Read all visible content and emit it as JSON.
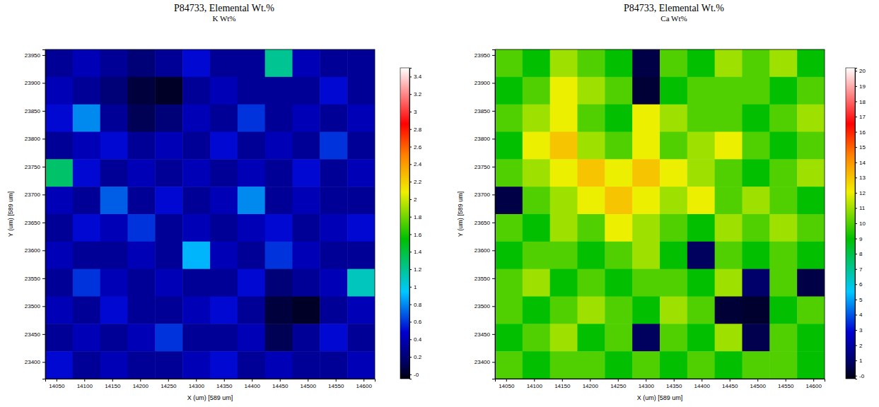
{
  "chart_data": [
    {
      "type": "heatmap",
      "title": "P84733, Elemental Wt.%",
      "subtitle": "K Wt%",
      "x_label": "X (um)  [589 um]",
      "y_label": "Y (um)  [589 um]",
      "xlim": [
        14030,
        14620
      ],
      "ylim": [
        23370,
        23960
      ],
      "xticks": [
        14050,
        14100,
        14150,
        14200,
        14250,
        14300,
        14350,
        14400,
        14450,
        14500,
        14550,
        14600
      ],
      "yticks": [
        23400,
        23450,
        23500,
        23550,
        23600,
        23650,
        23700,
        23750,
        23800,
        23850,
        23900,
        23950
      ],
      "cells": [
        [
          0.3,
          0.4,
          0.3,
          0.2,
          0.3,
          0.5,
          0.3,
          0.3,
          1.2,
          0.4,
          0.3,
          0.3
        ],
        [
          0.4,
          0.3,
          0.2,
          0.05,
          0.0,
          0.3,
          0.4,
          0.3,
          0.3,
          0.3,
          0.5,
          0.3
        ],
        [
          0.5,
          0.8,
          0.3,
          0.1,
          0.2,
          0.4,
          0.3,
          0.6,
          0.3,
          0.4,
          0.3,
          0.4
        ],
        [
          0.3,
          0.4,
          0.5,
          0.3,
          0.4,
          0.3,
          0.5,
          0.3,
          0.4,
          0.3,
          0.6,
          0.3
        ],
        [
          1.3,
          0.5,
          0.3,
          0.4,
          0.3,
          0.4,
          0.3,
          0.4,
          0.3,
          0.5,
          0.3,
          0.4
        ],
        [
          0.4,
          0.3,
          0.7,
          0.3,
          0.5,
          0.3,
          0.4,
          0.8,
          0.3,
          0.4,
          0.3,
          0.3
        ],
        [
          0.3,
          0.5,
          0.4,
          0.6,
          0.3,
          0.4,
          0.3,
          0.4,
          0.5,
          0.3,
          0.4,
          0.5
        ],
        [
          0.4,
          0.3,
          0.3,
          0.4,
          0.3,
          0.9,
          0.4,
          0.3,
          0.6,
          0.4,
          0.3,
          0.3
        ],
        [
          0.3,
          0.6,
          0.4,
          0.3,
          0.4,
          0.3,
          0.3,
          0.5,
          0.2,
          0.3,
          0.4,
          1.1
        ],
        [
          0.4,
          0.3,
          0.5,
          0.3,
          0.3,
          0.4,
          0.5,
          0.3,
          0.05,
          0.0,
          0.3,
          0.4
        ],
        [
          0.3,
          0.4,
          0.3,
          0.4,
          0.6,
          0.3,
          0.3,
          0.4,
          0.1,
          0.3,
          0.5,
          0.3
        ],
        [
          0.5,
          0.3,
          0.4,
          0.3,
          0.3,
          0.4,
          0.5,
          0.3,
          0.4,
          0.3,
          0.3,
          0.4
        ]
      ],
      "colorbar_range": [
        -0.05,
        3.5
      ],
      "colorbar_ticks": [
        {
          "value": 0,
          "label": "-0"
        },
        0.2,
        0.4,
        0.6,
        0.8,
        1,
        1.2,
        1.4,
        1.6,
        1.8,
        2,
        2.2,
        2.4,
        2.6,
        2.8,
        3,
        3.2,
        3.4
      ]
    },
    {
      "type": "heatmap",
      "title": "P84733, Elemental Wt.%",
      "subtitle": "Ca Wt%",
      "x_label": "X (um)  [589 um]",
      "y_label": "Y (um)  [589 um]",
      "xlim": [
        14030,
        14620
      ],
      "ylim": [
        23370,
        23960
      ],
      "xticks": [
        14050,
        14100,
        14150,
        14200,
        14250,
        14300,
        14350,
        14400,
        14450,
        14500,
        14550,
        14600
      ],
      "yticks": [
        23400,
        23450,
        23500,
        23550,
        23600,
        23650,
        23700,
        23750,
        23800,
        23850,
        23900,
        23950
      ],
      "cells": [
        [
          10,
          9,
          11,
          10,
          9,
          0.5,
          10,
          9,
          11,
          10,
          11,
          9
        ],
        [
          9,
          10,
          12,
          11,
          10,
          0.3,
          9,
          10,
          10,
          10,
          9,
          10
        ],
        [
          10,
          11,
          12,
          10,
          9,
          12,
          11,
          10,
          10,
          9,
          10,
          11
        ],
        [
          9,
          12,
          13,
          11,
          10,
          12,
          10,
          11,
          12,
          10,
          9,
          10
        ],
        [
          10,
          11,
          12,
          13,
          12,
          13,
          12,
          11,
          10,
          9,
          10,
          11
        ],
        [
          0.5,
          10,
          11,
          12,
          13,
          12,
          11,
          12,
          10,
          11,
          10,
          9
        ],
        [
          10,
          9,
          11,
          10,
          12,
          11,
          10,
          9,
          11,
          10,
          11,
          10
        ],
        [
          9,
          10,
          10,
          9,
          10,
          11,
          9,
          0.8,
          10,
          9,
          10,
          9
        ],
        [
          10,
          11,
          9,
          10,
          9,
          10,
          10,
          9,
          11,
          1,
          10,
          0.5
        ],
        [
          10,
          9,
          10,
          11,
          10,
          9,
          11,
          10,
          0.3,
          0.2,
          9,
          10
        ],
        [
          9,
          10,
          11,
          9,
          10,
          0.8,
          10,
          9,
          11,
          0.6,
          10,
          9
        ],
        [
          10,
          9,
          10,
          10,
          9,
          10,
          9,
          10,
          9,
          10,
          10,
          9
        ]
      ],
      "colorbar_range": [
        -0.2,
        20.2
      ],
      "colorbar_ticks": [
        {
          "value": 0,
          "label": "-0"
        },
        1,
        2,
        3,
        4,
        5,
        6,
        7,
        8,
        9,
        10,
        11,
        12,
        13,
        14,
        15,
        16,
        17,
        18,
        19,
        20
      ]
    }
  ]
}
